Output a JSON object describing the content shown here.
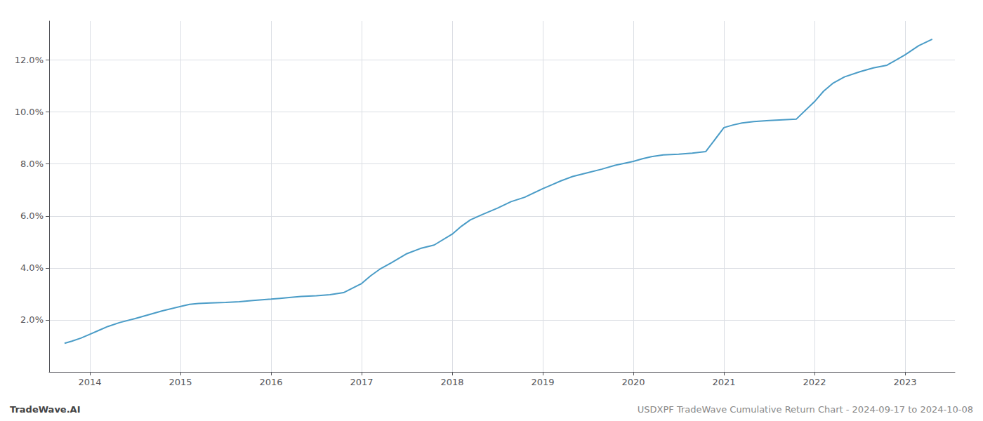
{
  "chart_data": {
    "type": "line",
    "annotations": [
      "TradeWave.AI",
      "USDXPF TradeWave Cumulative Return Chart - 2024-09-17 to 2024-10-08"
    ],
    "color": "#4a9cc7",
    "grid": true,
    "x": [
      2013.72,
      2013.8,
      2013.9,
      2014.0,
      2014.1,
      2014.2,
      2014.33,
      2014.5,
      2014.65,
      2014.8,
      2015.0,
      2015.1,
      2015.2,
      2015.33,
      2015.5,
      2015.65,
      2015.8,
      2016.0,
      2016.1,
      2016.2,
      2016.33,
      2016.5,
      2016.65,
      2016.8,
      2017.0,
      2017.1,
      2017.2,
      2017.33,
      2017.5,
      2017.65,
      2017.8,
      2018.0,
      2018.1,
      2018.2,
      2018.33,
      2018.5,
      2018.65,
      2018.8,
      2019.0,
      2019.1,
      2019.2,
      2019.33,
      2019.5,
      2019.65,
      2019.8,
      2020.0,
      2020.1,
      2020.2,
      2020.33,
      2020.5,
      2020.65,
      2020.8,
      2021.0,
      2021.1,
      2021.2,
      2021.33,
      2021.5,
      2021.65,
      2021.8,
      2022.0,
      2022.1,
      2022.2,
      2022.33,
      2022.5,
      2022.65,
      2022.8,
      2023.0,
      2023.15,
      2023.3
    ],
    "values": [
      1.1,
      1.18,
      1.3,
      1.45,
      1.6,
      1.75,
      1.9,
      2.05,
      2.2,
      2.35,
      2.52,
      2.6,
      2.63,
      2.65,
      2.67,
      2.7,
      2.75,
      2.8,
      2.83,
      2.86,
      2.9,
      2.93,
      2.97,
      3.05,
      3.4,
      3.7,
      3.95,
      4.2,
      4.55,
      4.75,
      4.88,
      5.3,
      5.6,
      5.85,
      6.05,
      6.3,
      6.55,
      6.72,
      7.05,
      7.2,
      7.35,
      7.52,
      7.67,
      7.8,
      7.95,
      8.1,
      8.2,
      8.28,
      8.35,
      8.38,
      8.42,
      8.48,
      9.4,
      9.5,
      9.58,
      9.63,
      9.67,
      9.7,
      9.73,
      10.4,
      10.8,
      11.1,
      11.35,
      11.55,
      11.7,
      11.8,
      12.2,
      12.55,
      12.8
    ],
    "xlim": [
      2013.55,
      2023.55
    ],
    "xticks": [
      2014,
      2015,
      2016,
      2017,
      2018,
      2019,
      2020,
      2021,
      2022,
      2023
    ],
    "ylim": [
      0.0,
      13.5
    ],
    "yticks": [
      {
        "value": 2.0,
        "label": "2.0%"
      },
      {
        "value": 4.0,
        "label": "4.0%"
      },
      {
        "value": 6.0,
        "label": "6.0%"
      },
      {
        "value": 8.0,
        "label": "8.0%"
      },
      {
        "value": 10.0,
        "label": "10.0%"
      },
      {
        "value": 12.0,
        "label": "12.0%"
      }
    ]
  }
}
